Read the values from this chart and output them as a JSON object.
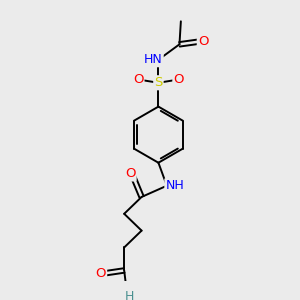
{
  "bg_color": "#ebebeb",
  "atom_colors": {
    "C": "#000000",
    "N": "#0000ff",
    "O": "#ff0000",
    "S": "#cccc00",
    "H": "#4a9090"
  },
  "bond_color": "#000000",
  "figsize": [
    3.0,
    3.0
  ],
  "dpi": 100
}
